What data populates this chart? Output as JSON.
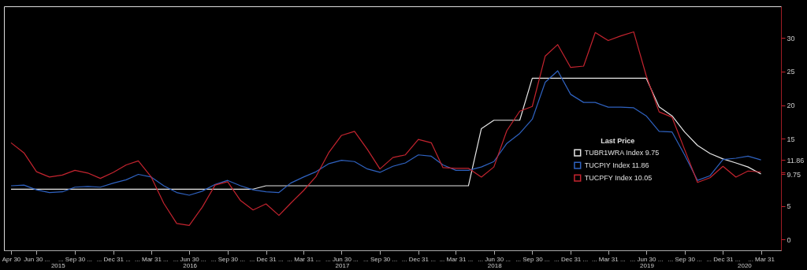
{
  "chart_data": {
    "type": "line",
    "x": [
      "2015-04-30",
      "2015-05-31",
      "2015-06-30",
      "2015-07-31",
      "2015-08-31",
      "2015-09-30",
      "2015-10-31",
      "2015-11-30",
      "2015-12-31",
      "2016-01-31",
      "2016-02-29",
      "2016-03-31",
      "2016-04-30",
      "2016-05-31",
      "2016-06-30",
      "2016-07-31",
      "2016-08-31",
      "2016-09-30",
      "2016-10-31",
      "2016-11-30",
      "2016-12-31",
      "2017-01-31",
      "2017-02-28",
      "2017-03-31",
      "2017-04-30",
      "2017-05-31",
      "2017-06-30",
      "2017-07-31",
      "2017-08-31",
      "2017-09-30",
      "2017-10-31",
      "2017-11-30",
      "2017-12-31",
      "2018-01-31",
      "2018-02-28",
      "2018-03-31",
      "2018-04-30",
      "2018-05-31",
      "2018-06-30",
      "2018-07-31",
      "2018-08-31",
      "2018-09-30",
      "2018-10-31",
      "2018-11-30",
      "2018-12-31",
      "2019-01-31",
      "2019-02-28",
      "2019-03-31",
      "2019-04-30",
      "2019-05-31",
      "2019-06-30",
      "2019-07-31",
      "2019-08-31",
      "2019-09-30",
      "2019-10-31",
      "2019-11-30",
      "2019-12-31",
      "2020-01-31",
      "2020-02-29",
      "2020-03-31"
    ],
    "series": [
      {
        "name": "TUBR1WRA Index  9.75",
        "color": "#e6e6e6",
        "values": [
          7.5,
          7.5,
          7.5,
          7.5,
          7.5,
          7.5,
          7.5,
          7.5,
          7.5,
          7.5,
          7.5,
          7.5,
          7.5,
          7.5,
          7.5,
          7.5,
          7.5,
          7.5,
          7.5,
          7.5,
          8.0,
          8.0,
          8.0,
          8.0,
          8.0,
          8.0,
          8.0,
          8.0,
          8.0,
          8.0,
          8.0,
          8.0,
          8.0,
          8.0,
          8.0,
          8.0,
          8.0,
          16.5,
          17.75,
          17.75,
          17.75,
          24,
          24,
          24,
          24,
          24,
          24,
          24,
          24,
          24,
          24,
          19.75,
          18.4,
          16.0,
          14.0,
          12.8,
          12.0,
          11.4,
          10.8,
          9.75
        ]
      },
      {
        "name": "TUCPIY Index  11.86",
        "color": "#2f62c0",
        "values": [
          8.0,
          8.1,
          7.4,
          7.0,
          7.1,
          7.8,
          7.9,
          7.8,
          8.4,
          8.9,
          9.7,
          9.3,
          8.0,
          7.0,
          6.6,
          7.2,
          8.2,
          8.8,
          8.0,
          7.4,
          7.1,
          7.0,
          8.4,
          9.3,
          10.1,
          11.3,
          11.8,
          11.6,
          10.5,
          10.0,
          10.9,
          11.4,
          12.6,
          12.4,
          11.1,
          10.3,
          10.3,
          10.8,
          11.6,
          14.3,
          15.8,
          17.9,
          23.4,
          25.1,
          21.6,
          20.4,
          20.4,
          19.7,
          19.7,
          19.6,
          18.4,
          16.1,
          16.0,
          12.6,
          8.8,
          9.5,
          11.9,
          12.1,
          12.4,
          11.86
        ]
      },
      {
        "name": "TUCPFY Index  10.05",
        "color": "#c4242f",
        "values": [
          14.4,
          12.9,
          10.1,
          9.3,
          9.6,
          10.3,
          9.9,
          9.1,
          10.0,
          11.1,
          11.7,
          9.3,
          5.4,
          2.4,
          2.1,
          4.8,
          8.1,
          8.6,
          5.8,
          4.4,
          5.3,
          3.6,
          5.4,
          7.3,
          9.4,
          13.0,
          15.5,
          16.1,
          13.4,
          10.5,
          12.2,
          12.6,
          14.9,
          14.4,
          10.7,
          10.6,
          10.6,
          9.3,
          10.8,
          16.2,
          19.1,
          19.8,
          27.3,
          29.0,
          25.6,
          25.8,
          30.8,
          29.6,
          30.3,
          30.9,
          24.4,
          19.0,
          18.2,
          13.4,
          8.5,
          9.2,
          10.9,
          9.3,
          10.2,
          10.05
        ]
      }
    ],
    "legend_title": "Last Price",
    "legend": "right",
    "grid": false,
    "marker": "none",
    "line_style": "solid",
    "xlim": [
      "2015-04-13",
      "2020-05-18"
    ],
    "xticks": [
      {
        "value": "2015-04-30",
        "label": "Apr 30"
      },
      {
        "value": "2015-06-30",
        "label": "Jun 30 ..."
      },
      {
        "value": "2015-09-30",
        "label": "... Sep 30 ..."
      },
      {
        "value": "2015-12-31",
        "label": "... Dec 31 ..."
      },
      {
        "value": "2016-03-31",
        "label": "... Mar 31 ..."
      },
      {
        "value": "2016-06-30",
        "label": "... Jun 30 ..."
      },
      {
        "value": "2016-09-30",
        "label": "... Sep 30 ..."
      },
      {
        "value": "2016-12-31",
        "label": "... Dec 31 ..."
      },
      {
        "value": "2017-03-31",
        "label": "... Mar 31 ..."
      },
      {
        "value": "2017-06-30",
        "label": "... Jun 30 ..."
      },
      {
        "value": "2017-09-30",
        "label": "... Sep 30 ..."
      },
      {
        "value": "2017-12-31",
        "label": "... Dec 31 ..."
      },
      {
        "value": "2018-03-31",
        "label": "... Mar 31 ..."
      },
      {
        "value": "2018-06-30",
        "label": "... Jun 30 ..."
      },
      {
        "value": "2018-09-30",
        "label": "... Sep 30 ..."
      },
      {
        "value": "2018-12-31",
        "label": "... Dec 31 ..."
      },
      {
        "value": "2019-03-31",
        "label": "... Mar 31 ..."
      },
      {
        "value": "2019-06-30",
        "label": "... Jun 30 ..."
      },
      {
        "value": "2019-09-30",
        "label": "... Sep 30 ..."
      },
      {
        "value": "2019-12-31",
        "label": "... Dec 31 ..."
      },
      {
        "value": "2020-03-31",
        "label": "... Mar 31"
      }
    ],
    "x2lim": [
      "2015-04-13",
      "2020-05-18"
    ],
    "x2ticks": [
      {
        "value": "2015-08-20",
        "label": "2015"
      },
      {
        "value": "2016-07-01",
        "label": "2016"
      },
      {
        "value": "2017-07-01",
        "label": "2017"
      },
      {
        "value": "2018-07-01",
        "label": "2018"
      },
      {
        "value": "2019-07-01",
        "label": "2019"
      },
      {
        "value": "2020-02-20",
        "label": "2020"
      }
    ],
    "ylim": [
      -1.6,
      34.7
    ],
    "yticks": [
      0,
      5,
      {
        "value": 9.75,
        "label": "9.75"
      },
      {
        "value": 10,
        "label": null
      },
      {
        "value": 11.86,
        "label": "11.86"
      },
      15,
      20,
      25,
      30
    ]
  }
}
